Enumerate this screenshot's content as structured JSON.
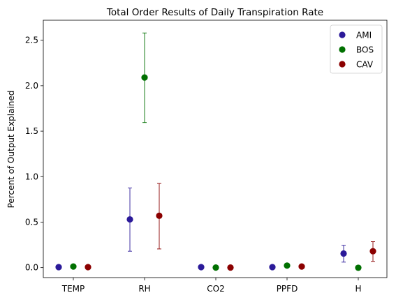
{
  "chart_data": {
    "type": "scatter",
    "title": "Total Order Results of Daily Transpiration Rate",
    "xlabel": "",
    "ylabel": "Percent of Output Explained",
    "categories": [
      "TEMP",
      "RH",
      "CO2",
      "PPFD",
      "H"
    ],
    "ylim": [
      -0.11,
      2.72
    ],
    "yticks": [
      0.0,
      0.5,
      1.0,
      1.5,
      2.0,
      2.5
    ],
    "ytick_labels": [
      "0.0",
      "0.5",
      "1.0",
      "1.5",
      "2.0",
      "2.5"
    ],
    "grid": false,
    "legend_position": "top-right",
    "error_bars": true,
    "series": [
      {
        "name": "AMI",
        "color": "#2b1a99",
        "values": [
          0.005,
          0.53,
          0.005,
          0.005,
          0.155
        ],
        "err_low": [
          0.005,
          0.18,
          0.005,
          0.005,
          0.06
        ],
        "err_high": [
          0.005,
          0.875,
          0.005,
          0.005,
          0.245
        ]
      },
      {
        "name": "BOS",
        "color": "#007000",
        "values": [
          0.012,
          2.09,
          0.0,
          0.022,
          -0.002
        ],
        "err_low": [
          0.012,
          1.595,
          0.0,
          0.022,
          -0.002
        ],
        "err_high": [
          0.012,
          2.58,
          0.0,
          0.022,
          -0.002
        ]
      },
      {
        "name": "CAV",
        "color": "#8b0000",
        "values": [
          0.005,
          0.57,
          0.0,
          0.012,
          0.18
        ],
        "err_low": [
          0.005,
          0.205,
          0.0,
          0.012,
          0.068
        ],
        "err_high": [
          0.005,
          0.925,
          0.0,
          0.012,
          0.285
        ]
      }
    ]
  }
}
